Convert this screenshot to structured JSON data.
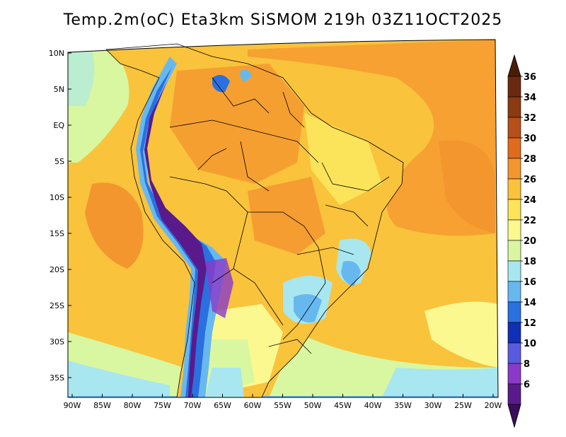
{
  "title": "Temp.2m(oC) Eta3km SiSMOM 219h 03Z11OCT2025",
  "lat_ticks": [
    "10N",
    "5N",
    "EQ",
    "5S",
    "10S",
    "15S",
    "20S",
    "25S",
    "30S",
    "35S"
  ],
  "lon_ticks": [
    "90W",
    "85W",
    "80W",
    "75W",
    "70W",
    "65W",
    "60W",
    "55W",
    "50W",
    "45W",
    "40W",
    "35W",
    "30W",
    "25W",
    "20W"
  ],
  "colorbar": {
    "labels": [
      "36",
      "34",
      "32",
      "30",
      "28",
      "26",
      "24",
      "22",
      "20",
      "18",
      "16",
      "14",
      "12",
      "10",
      "8",
      "6"
    ],
    "colors": [
      "#6b2a0f",
      "#8b3a12",
      "#b5501a",
      "#e06a1e",
      "#f4962e",
      "#f9c33c",
      "#fbe45a",
      "#fbf890",
      "#d8f7a0",
      "#a8e6f0",
      "#68b8f0",
      "#2a70e0",
      "#1030b8",
      "#5a5ae0",
      "#8a3ac8",
      "#5a1a8c"
    ],
    "top_arrow_color": "#4a1c08",
    "bottom_arrow_color": "#3a0d5c"
  },
  "palette": {
    "ocean_warm": "#f9c33c",
    "ocean_hot": "#f4962e",
    "ocean_cool": "#d8f7a0",
    "land_warm": "#f4962e",
    "andes_cold": "#5a1a8c",
    "border_color": "#000000"
  }
}
